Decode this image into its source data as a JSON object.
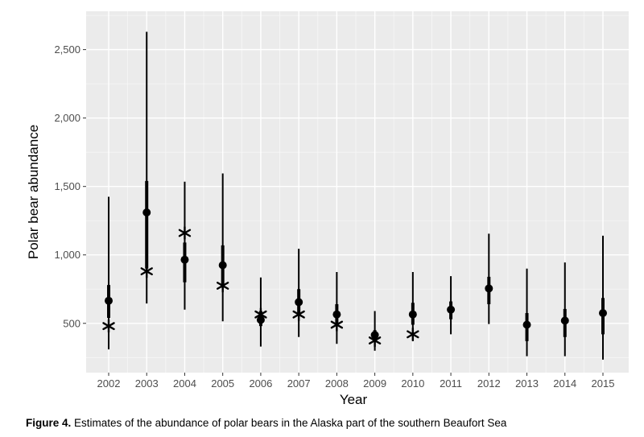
{
  "chart_data": {
    "type": "scatter",
    "title": "",
    "xlabel": "Year",
    "ylabel": "Polar bear abundance",
    "categories": [
      "2002",
      "2003",
      "2004",
      "2005",
      "2006",
      "2007",
      "2008",
      "2009",
      "2010",
      "2011",
      "2012",
      "2013",
      "2014",
      "2015"
    ],
    "ylim": [
      140,
      2780
    ],
    "yticks": [
      500,
      1000,
      1500,
      2000,
      2500
    ],
    "ytick_labels": [
      "500",
      "1,000",
      "1,500",
      "2,000",
      "2,500"
    ],
    "grid": true,
    "series": [
      {
        "marker": "circle",
        "values": [
          665,
          1310,
          965,
          925,
          525,
          655,
          565,
          415,
          565,
          600,
          755,
          490,
          520,
          575
        ],
        "inner_interval_low": [
          540,
          900,
          800,
          760,
          480,
          560,
          500,
          380,
          490,
          530,
          640,
          370,
          400,
          420
        ],
        "inner_interval_high": [
          780,
          1540,
          1090,
          1070,
          590,
          750,
          640,
          450,
          650,
          660,
          840,
          575,
          605,
          685
        ],
        "outer_interval_low": [
          310,
          645,
          600,
          515,
          330,
          400,
          350,
          300,
          370,
          420,
          495,
          260,
          260,
          235
        ],
        "outer_interval_high": [
          1425,
          2630,
          1535,
          1595,
          835,
          1045,
          875,
          590,
          875,
          845,
          1155,
          900,
          945,
          1140
        ]
      },
      {
        "marker": "asterisk",
        "categories": [
          "2002",
          "2003",
          "2004",
          "2005",
          "2006",
          "2007",
          "2008",
          "2009",
          "2010"
        ],
        "values": [
          480,
          880,
          1160,
          775,
          565,
          565,
          490,
          375,
          420
        ]
      }
    ],
    "colors": {
      "panel": "#ebebeb",
      "grid_major": "#ffffff",
      "marks": "#000000"
    }
  },
  "caption": {
    "label": "Figure 4.",
    "text": "Estimates of the abundance of polar bears in the Alaska part of the southern Beaufort Sea"
  }
}
